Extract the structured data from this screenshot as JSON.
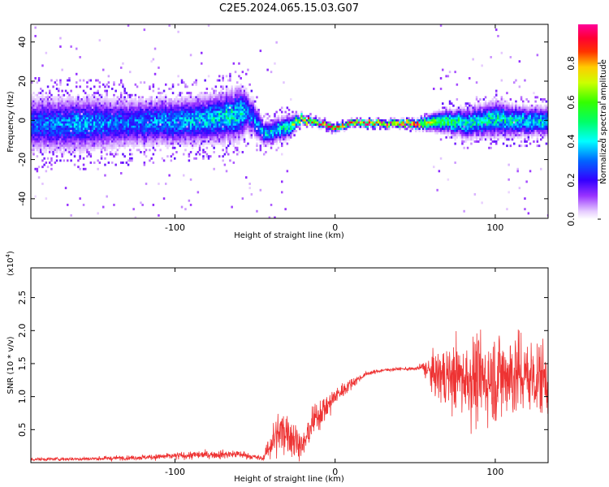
{
  "figure_title": "C2E5.2024.065.15.03.G07",
  "chart_data": [
    {
      "type": "heatmap",
      "title": "",
      "xlabel": "Height of straight line (km)",
      "ylabel": "Frequency (Hz)",
      "xlim": [
        -190,
        133
      ],
      "ylim": [
        -50,
        49
      ],
      "xticks": [
        -100,
        0,
        100
      ],
      "yticks": [
        -40,
        -20,
        0,
        20,
        40
      ],
      "colorbar": {
        "label": "Normalized spectral amplitude",
        "range": [
          0.0,
          1.0
        ],
        "ticks": [
          0.0,
          0.2,
          0.4,
          0.6,
          0.8
        ],
        "colormap": "rainbow (magenta-purple-blue-cyan-green-yellow-orange-red-pink)"
      },
      "ridge": {
        "description": "spectral peak frequency versus height",
        "x": [
          -190,
          -160,
          -130,
          -100,
          -80,
          -60,
          -55,
          -45,
          -30,
          -22,
          -10,
          0,
          10,
          30,
          50,
          60,
          80,
          100,
          120,
          133
        ],
        "y": [
          -2,
          -1,
          -1,
          0,
          1,
          4,
          5,
          -6,
          -3,
          1,
          -1,
          -3,
          -1,
          -1,
          -1,
          0,
          -1,
          1,
          0,
          0
        ],
        "peak_amplitude": [
          0.3,
          0.35,
          0.3,
          0.35,
          0.4,
          0.45,
          0.3,
          0.4,
          0.45,
          0.85,
          0.95,
          0.9,
          0.95,
          0.95,
          0.9,
          0.6,
          0.45,
          0.45,
          0.4,
          0.4
        ],
        "spread_hz": [
          9,
          9,
          8,
          8,
          8,
          9,
          7,
          4,
          4,
          1.5,
          1.2,
          1.2,
          1.2,
          1.2,
          1.5,
          3,
          5,
          6,
          5,
          5
        ]
      }
    },
    {
      "type": "line",
      "title": "",
      "xlabel": "Height of straight line (km)",
      "ylabel": "SNR (10 * v/v)",
      "y_multiplier": "(x10",
      "y_multiplier_exp": "4",
      "y_multiplier_close": ")",
      "xlim": [
        -190,
        133
      ],
      "ylim": [
        0.0,
        2.95
      ],
      "xticks": [
        -100,
        0,
        100
      ],
      "yticks": [
        0.5,
        1.0,
        1.5,
        2.0,
        2.5
      ],
      "color": "#ee3333",
      "envelope": {
        "x": [
          -190,
          -150,
          -120,
          -100,
          -80,
          -60,
          -45,
          -40,
          -35,
          -30,
          -25,
          -20,
          -15,
          -10,
          -5,
          0,
          10,
          20,
          30,
          40,
          50,
          55,
          60,
          70,
          80,
          90,
          100,
          110,
          120,
          133
        ],
        "mean": [
          0.05,
          0.06,
          0.08,
          0.1,
          0.12,
          0.13,
          0.06,
          0.3,
          0.45,
          0.5,
          0.35,
          0.25,
          0.55,
          0.75,
          0.85,
          1.0,
          1.2,
          1.35,
          1.4,
          1.42,
          1.42,
          1.45,
          1.35,
          1.3,
          1.3,
          1.25,
          1.3,
          1.35,
          1.3,
          1.3
        ],
        "noise": [
          0.03,
          0.04,
          0.05,
          0.07,
          0.08,
          0.08,
          0.04,
          0.35,
          0.4,
          0.45,
          0.4,
          0.2,
          0.3,
          0.3,
          0.25,
          0.2,
          0.1,
          0.04,
          0.03,
          0.03,
          0.03,
          0.1,
          0.35,
          0.6,
          0.8,
          0.8,
          0.9,
          0.9,
          0.8,
          0.7
        ]
      }
    }
  ]
}
